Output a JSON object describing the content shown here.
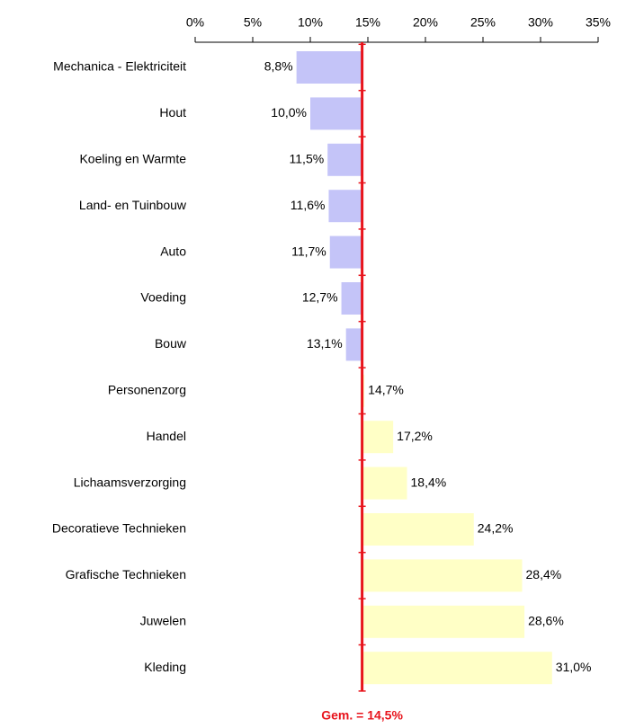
{
  "chart_data": {
    "type": "bar",
    "orientation": "horizontal",
    "categories": [
      "Mechanica - Elektriciteit",
      "Hout",
      "Koeling en Warmte",
      "Land- en Tuinbouw",
      "Auto",
      "Voeding",
      "Bouw",
      "Personenzorg",
      "Handel",
      "Lichaamsverzorging",
      "Decoratieve Technieken",
      "Grafische Technieken",
      "Juwelen",
      "Kleding"
    ],
    "values": [
      8.8,
      10.0,
      11.5,
      11.6,
      11.7,
      12.7,
      13.1,
      14.7,
      17.2,
      18.4,
      24.2,
      28.4,
      28.6,
      31.0
    ],
    "value_labels": [
      "8,8%",
      "10,0%",
      "11,5%",
      "11,6%",
      "11,7%",
      "12,7%",
      "13,1%",
      "14,7%",
      "17,2%",
      "18,4%",
      "24,2%",
      "28,4%",
      "28,6%",
      "31,0%"
    ],
    "average": 14.5,
    "average_label": "Gem. = 14,5%",
    "average_color": "#e8141c",
    "color_below": "#c4c4f8",
    "color_above": "#ffffc6",
    "xlim": [
      0,
      35
    ],
    "xticks": [
      {
        "value": 0,
        "label": "0%"
      },
      {
        "value": 5,
        "label": "5%"
      },
      {
        "value": 10,
        "label": "10%"
      },
      {
        "value": 15,
        "label": "15%"
      },
      {
        "value": 20,
        "label": "20%"
      },
      {
        "value": 25,
        "label": "25%"
      },
      {
        "value": 30,
        "label": "30%"
      },
      {
        "value": 35,
        "label": "35%"
      }
    ]
  }
}
